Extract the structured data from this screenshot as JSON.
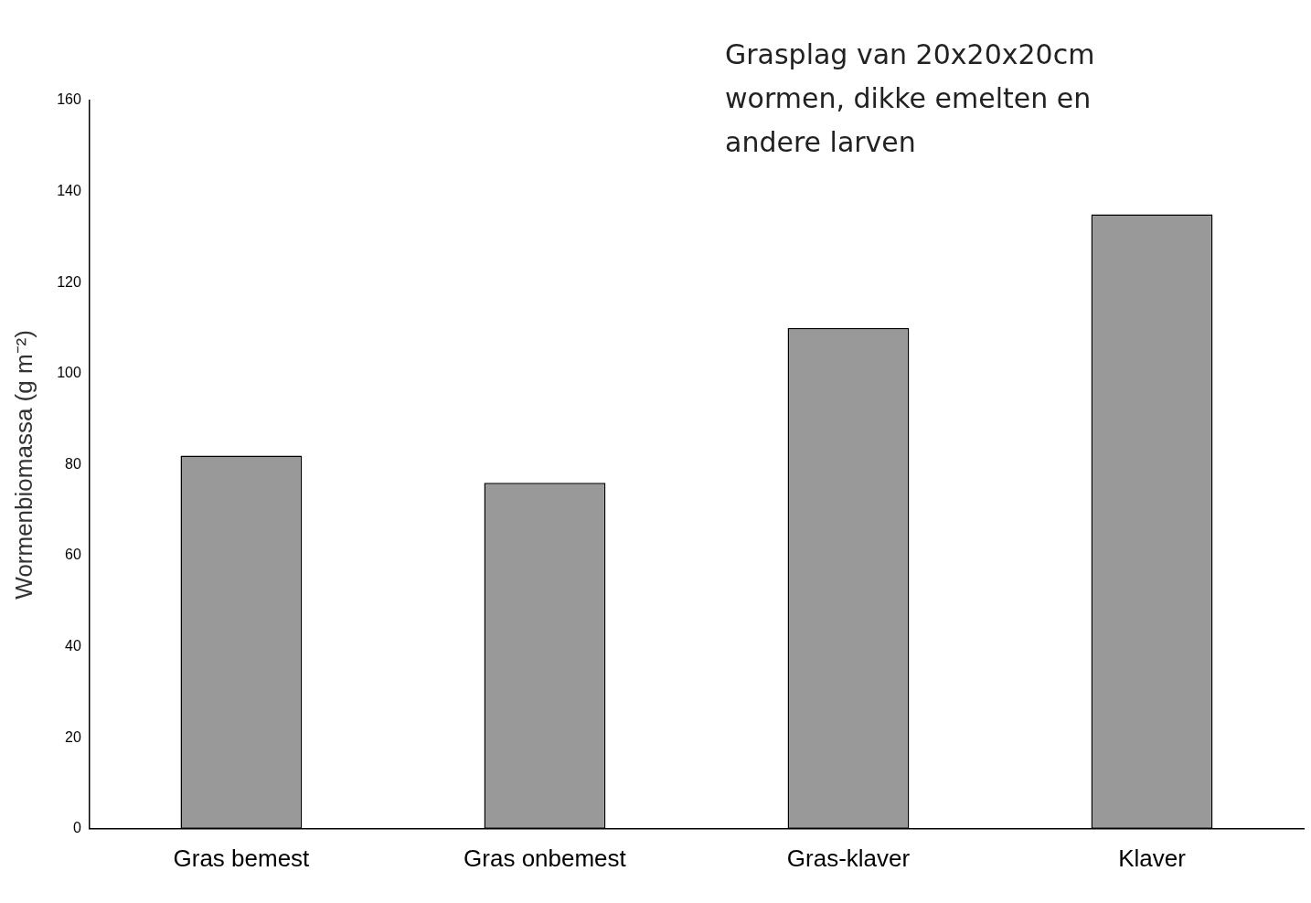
{
  "chart_data": {
    "type": "bar",
    "y_label": "Wormenbiomassa (g m⁻²)",
    "annotation": "Grasplag van 20x20x20cm wormen, dikke emelten en andere larven",
    "categories": [
      "Gras bemest",
      "Gras onbemest",
      "Gras-klaver",
      "Klaver"
    ],
    "values": [
      82,
      76,
      110,
      135
    ],
    "color": "#999999",
    "ylim": [
      0,
      160
    ],
    "yticks": [
      0,
      20,
      40,
      60,
      80,
      100,
      120,
      140,
      160
    ],
    "grid": false
  }
}
